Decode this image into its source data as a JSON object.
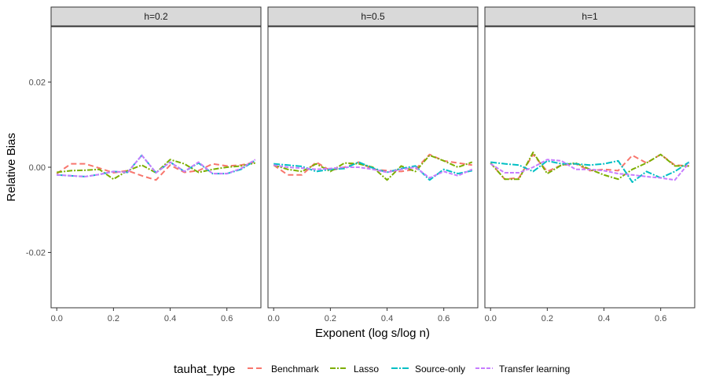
{
  "chart_data": {
    "type": "line",
    "xlabel": "Exponent (log s/log n)",
    "ylabel": "Relative Bias",
    "xlim": [
      -0.02,
      0.72
    ],
    "ylim": [
      -0.033,
      0.033
    ],
    "x_ticks": [
      0.0,
      0.2,
      0.4,
      0.6
    ],
    "x_tick_labels": [
      "0.0",
      "0.2",
      "0.4",
      "0.6"
    ],
    "y_ticks": [
      -0.02,
      0.0,
      0.02
    ],
    "y_tick_labels": [
      "-0.02",
      "0.00",
      "0.02"
    ],
    "grid": false,
    "legend": {
      "title": "tauhat_type",
      "position": "bottom",
      "entries": [
        {
          "name": "Benchmark",
          "color": "#F8766D",
          "dash": "7,4"
        },
        {
          "name": "Lasso",
          "color": "#7CAE00",
          "dash": "7,2,2,2"
        },
        {
          "name": "Source-only",
          "color": "#00BFC4",
          "dash": "8,2,2,2"
        },
        {
          "name": "Transfer learning",
          "color": "#C77CFF",
          "dash": "5,2"
        }
      ]
    },
    "x": [
      0.0,
      0.05,
      0.1,
      0.15,
      0.2,
      0.25,
      0.3,
      0.35,
      0.4,
      0.45,
      0.5,
      0.55,
      0.6,
      0.65,
      0.7
    ],
    "panels": [
      {
        "label": "h=0.2",
        "series": [
          {
            "name": "Benchmark",
            "values": [
              -0.0015,
              0.0008,
              0.0008,
              -0.0002,
              -0.0013,
              -0.0008,
              -0.002,
              -0.003,
              0.0005,
              -0.0012,
              -0.0008,
              0.0008,
              0.0003,
              0.0005,
              0.0012
            ]
          },
          {
            "name": "Lasso",
            "values": [
              -0.0012,
              -0.0008,
              -0.0007,
              -0.0005,
              -0.0028,
              -0.0008,
              0.0005,
              -0.0013,
              0.0018,
              0.0008,
              -0.0012,
              -0.0005,
              0.0,
              0.0003,
              0.001
            ]
          },
          {
            "name": "Source-only",
            "values": [
              -0.0018,
              -0.002,
              -0.0022,
              -0.0017,
              -0.001,
              -0.0012,
              0.0028,
              -0.0013,
              0.0012,
              -0.001,
              0.001,
              -0.0015,
              -0.0015,
              -0.0005,
              0.0016
            ]
          },
          {
            "name": "Transfer learning",
            "values": [
              -0.0018,
              -0.002,
              -0.0022,
              -0.0017,
              -0.001,
              -0.0012,
              0.0028,
              -0.0013,
              0.0012,
              -0.001,
              0.0012,
              -0.0015,
              -0.0015,
              -0.0003,
              0.0018
            ]
          }
        ]
      },
      {
        "label": "h=0.5",
        "series": [
          {
            "name": "Benchmark",
            "values": [
              0.0005,
              -0.0018,
              -0.0018,
              0.0012,
              -0.0008,
              0.0,
              0.0012,
              -0.0005,
              -0.0008,
              -0.001,
              -0.0005,
              0.003,
              0.0015,
              0.001,
              0.0005
            ]
          },
          {
            "name": "Lasso",
            "values": [
              0.0005,
              -0.0005,
              -0.001,
              0.0008,
              -0.001,
              0.001,
              0.0008,
              0.0,
              -0.003,
              0.0003,
              -0.001,
              0.0028,
              0.0015,
              0.0,
              0.0012
            ]
          },
          {
            "name": "Source-only",
            "values": [
              0.0008,
              0.0005,
              0.0002,
              -0.001,
              -0.0005,
              -0.0003,
              0.0012,
              -0.0002,
              -0.0012,
              -0.0003,
              0.0003,
              -0.003,
              -0.0005,
              -0.0015,
              -0.0008
            ]
          },
          {
            "name": "Transfer learning",
            "values": [
              0.0005,
              0.0,
              -0.0002,
              -0.0005,
              -0.0003,
              0.0,
              0.0,
              -0.0005,
              -0.0012,
              -0.0005,
              0.0,
              -0.0025,
              -0.001,
              -0.002,
              -0.0005
            ]
          }
        ]
      },
      {
        "label": "h=1",
        "series": [
          {
            "name": "Benchmark",
            "values": [
              0.001,
              -0.0028,
              -0.0025,
              0.003,
              -0.001,
              0.0005,
              0.0008,
              -0.0008,
              -0.0005,
              -0.0008,
              0.0028,
              0.001,
              0.003,
              0.0005,
              0.0003
            ]
          },
          {
            "name": "Lasso",
            "values": [
              0.001,
              -0.0028,
              -0.0028,
              0.0035,
              -0.0015,
              0.0005,
              0.001,
              -0.0005,
              -0.0018,
              -0.0028,
              -0.0005,
              0.001,
              0.003,
              0.0003,
              0.0003
            ]
          },
          {
            "name": "Source-only",
            "values": [
              0.0012,
              0.0008,
              0.0005,
              -0.001,
              0.0015,
              0.0008,
              0.0008,
              0.0005,
              0.0008,
              0.0015,
              -0.0035,
              -0.001,
              -0.0025,
              -0.001,
              0.0012
            ]
          },
          {
            "name": "Transfer learning",
            "values": [
              0.0008,
              -0.0013,
              -0.0013,
              0.0,
              0.0018,
              0.0015,
              -0.0005,
              -0.0005,
              -0.0008,
              -0.0015,
              -0.0018,
              -0.0022,
              -0.0025,
              -0.003,
              0.001
            ]
          }
        ]
      }
    ]
  }
}
